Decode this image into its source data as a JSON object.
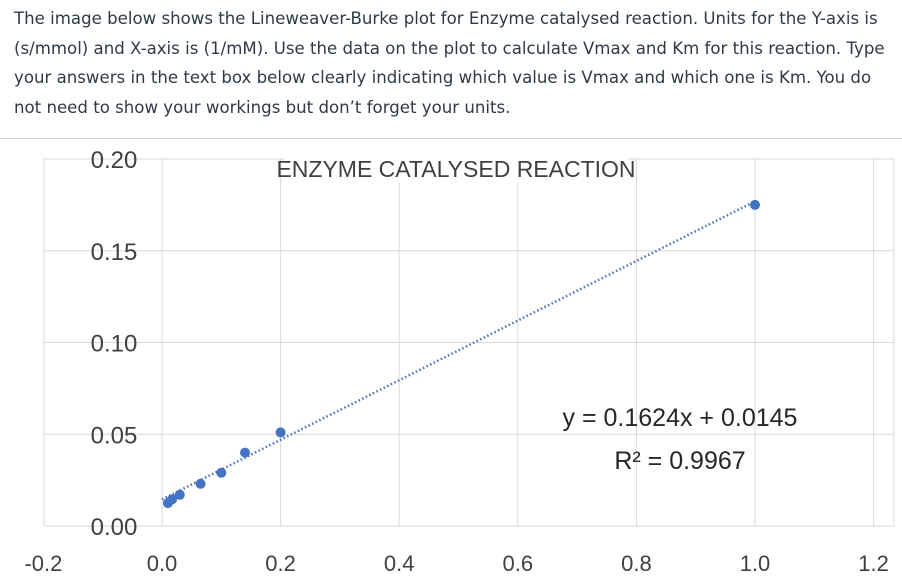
{
  "question": {
    "text": "The image below shows the Lineweaver-Burke plot for Enzyme catalysed reaction. Units for the Y-axis is (s/mmol) and X-axis is (1/mM). Use the data on the plot to calculate Vmax and Km for this reaction. Type your answers in the text box below clearly indicating which value is Vmax and which one is Km. You do not need to show your workings but don’t forget your units."
  },
  "chart_data": {
    "type": "scatter",
    "title": "ENZYME CATALYSED REACTION",
    "xlabel": "",
    "ylabel": "",
    "xlim": [
      -0.2,
      1.2
    ],
    "ylim": [
      0.0,
      0.2
    ],
    "x_ticks": [
      "-0.2",
      "0.0",
      "0.2",
      "0.4",
      "0.6",
      "0.8",
      "1.0",
      "1.2"
    ],
    "y_ticks": [
      "0.00",
      "0.05",
      "0.10",
      "0.15",
      "0.20"
    ],
    "grid": true,
    "series": [
      {
        "x": [
          0.01,
          0.017,
          0.03,
          0.065,
          0.1,
          0.14,
          0.2,
          1.0
        ],
        "y": [
          0.0125,
          0.0145,
          0.017,
          0.023,
          0.029,
          0.04,
          0.051,
          0.175
        ],
        "color": "#4472c4"
      }
    ],
    "trendline": {
      "slope": 0.1624,
      "intercept": 0.0145,
      "style": "dotted",
      "color": "#4472c4",
      "x_range": [
        0.0,
        1.0
      ]
    },
    "annotations": [
      "y = 0.1624x + 0.0145",
      "R² = 0.9967"
    ]
  }
}
